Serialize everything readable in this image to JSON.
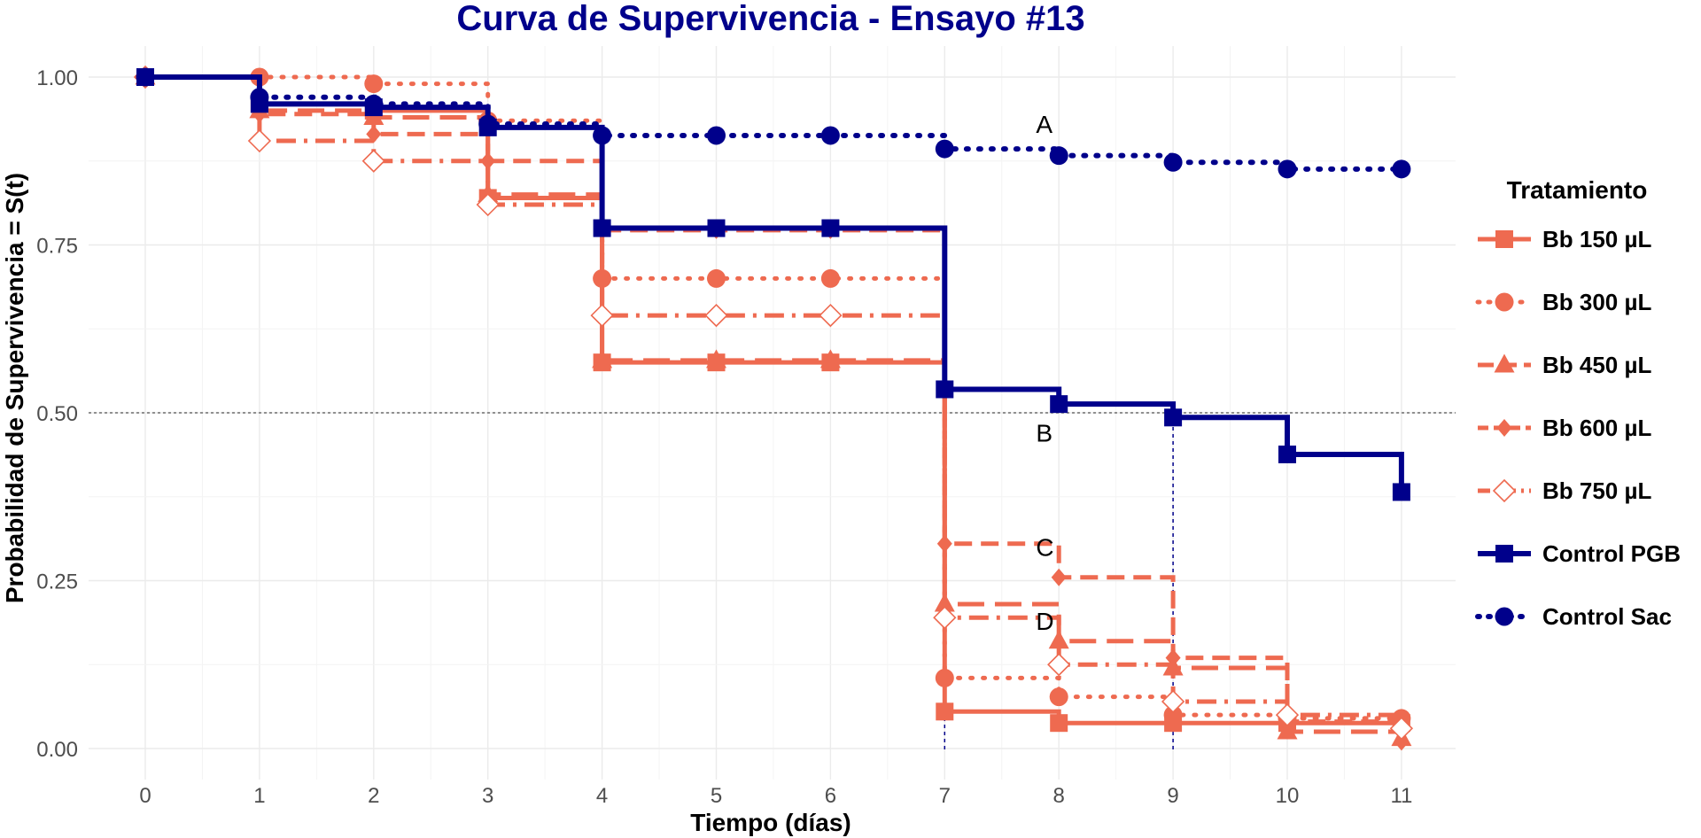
{
  "chart_data": {
    "type": "line",
    "title": "Curva de Supervivencia - Ensayo #13",
    "xlabel": "Tiempo (días)",
    "ylabel": "Probabilidad de Supervivencia = S(t)",
    "xlim": [
      0,
      11
    ],
    "ylim": [
      0,
      1
    ],
    "x_ticks": [
      0,
      1,
      2,
      3,
      4,
      5,
      6,
      7,
      8,
      9,
      10,
      11
    ],
    "y_ticks": [
      0,
      0.25,
      0.5,
      0.75,
      1
    ],
    "y_tick_labels": [
      "0.00",
      "0.25",
      "0.50",
      "0.75",
      "1.00"
    ],
    "grid": true,
    "reference_line_y": 0.5,
    "median_lines_x": [
      7,
      9
    ],
    "legend_title": "Tratamiento",
    "legend_position": "right",
    "annotations": [
      {
        "text": "A",
        "x": 7.8,
        "y": 0.93
      },
      {
        "text": "B",
        "x": 7.8,
        "y": 0.47
      },
      {
        "text": "C",
        "x": 7.8,
        "y": 0.3
      },
      {
        "text": "D",
        "x": 7.8,
        "y": 0.19
      }
    ],
    "series": [
      {
        "name": "Bb 150 µL",
        "color": "#EE6A50",
        "line": "solid",
        "marker": "square",
        "x": [
          0,
          1,
          2,
          3,
          4,
          5,
          6,
          7,
          8,
          9,
          10,
          11
        ],
        "y": [
          1.0,
          0.96,
          0.95,
          0.82,
          0.575,
          0.575,
          0.575,
          0.055,
          0.038,
          0.038,
          0.038,
          0.038
        ]
      },
      {
        "name": "Bb 300 µL",
        "color": "#EE6A50",
        "line": "dotted",
        "marker": "circle",
        "x": [
          0,
          1,
          2,
          3,
          4,
          5,
          6,
          7,
          8,
          9,
          10,
          11
        ],
        "y": [
          1.0,
          1.0,
          0.99,
          0.935,
          0.7,
          0.7,
          0.7,
          0.105,
          0.077,
          0.05,
          0.045,
          0.045
        ]
      },
      {
        "name": "Bb 450 µL",
        "color": "#EE6A50",
        "line": "longdash",
        "marker": "triangle",
        "x": [
          0,
          1,
          2,
          3,
          4,
          5,
          6,
          7,
          8,
          9,
          10,
          11
        ],
        "y": [
          1.0,
          0.95,
          0.94,
          0.825,
          0.578,
          0.578,
          0.578,
          0.215,
          0.16,
          0.12,
          0.025,
          0.015
        ]
      },
      {
        "name": "Bb 600 µL",
        "color": "#EE6A50",
        "line": "dashed",
        "marker": "diamond",
        "x": [
          0,
          1,
          2,
          3,
          4,
          5,
          6,
          7,
          8,
          9,
          10,
          11
        ],
        "y": [
          1.0,
          0.945,
          0.915,
          0.875,
          0.772,
          0.772,
          0.772,
          0.305,
          0.255,
          0.135,
          0.04,
          0.01
        ]
      },
      {
        "name": "Bb 750 µL",
        "color": "#EE6A50",
        "line": "dashdot",
        "marker": "open-diamond",
        "x": [
          0,
          1,
          2,
          3,
          4,
          5,
          6,
          7,
          8,
          9,
          10,
          11
        ],
        "y": [
          1.0,
          0.905,
          0.875,
          0.81,
          0.645,
          0.645,
          0.645,
          0.195,
          0.125,
          0.07,
          0.05,
          0.03
        ]
      },
      {
        "name": "Control PGB",
        "color": "#00008B",
        "line": "solid",
        "marker": "square",
        "x": [
          0,
          1,
          2,
          3,
          4,
          5,
          6,
          7,
          8,
          9,
          10,
          11
        ],
        "y": [
          1.0,
          0.96,
          0.955,
          0.925,
          0.775,
          0.775,
          0.775,
          0.535,
          0.513,
          0.493,
          0.438,
          0.382
        ]
      },
      {
        "name": "Control Sac",
        "color": "#00008B",
        "line": "dotted",
        "marker": "circle",
        "x": [
          0,
          1,
          2,
          3,
          4,
          5,
          6,
          7,
          8,
          9,
          10,
          11
        ],
        "y": [
          1.0,
          0.97,
          0.96,
          0.93,
          0.913,
          0.913,
          0.913,
          0.893,
          0.883,
          0.873,
          0.863,
          0.863
        ]
      }
    ]
  }
}
